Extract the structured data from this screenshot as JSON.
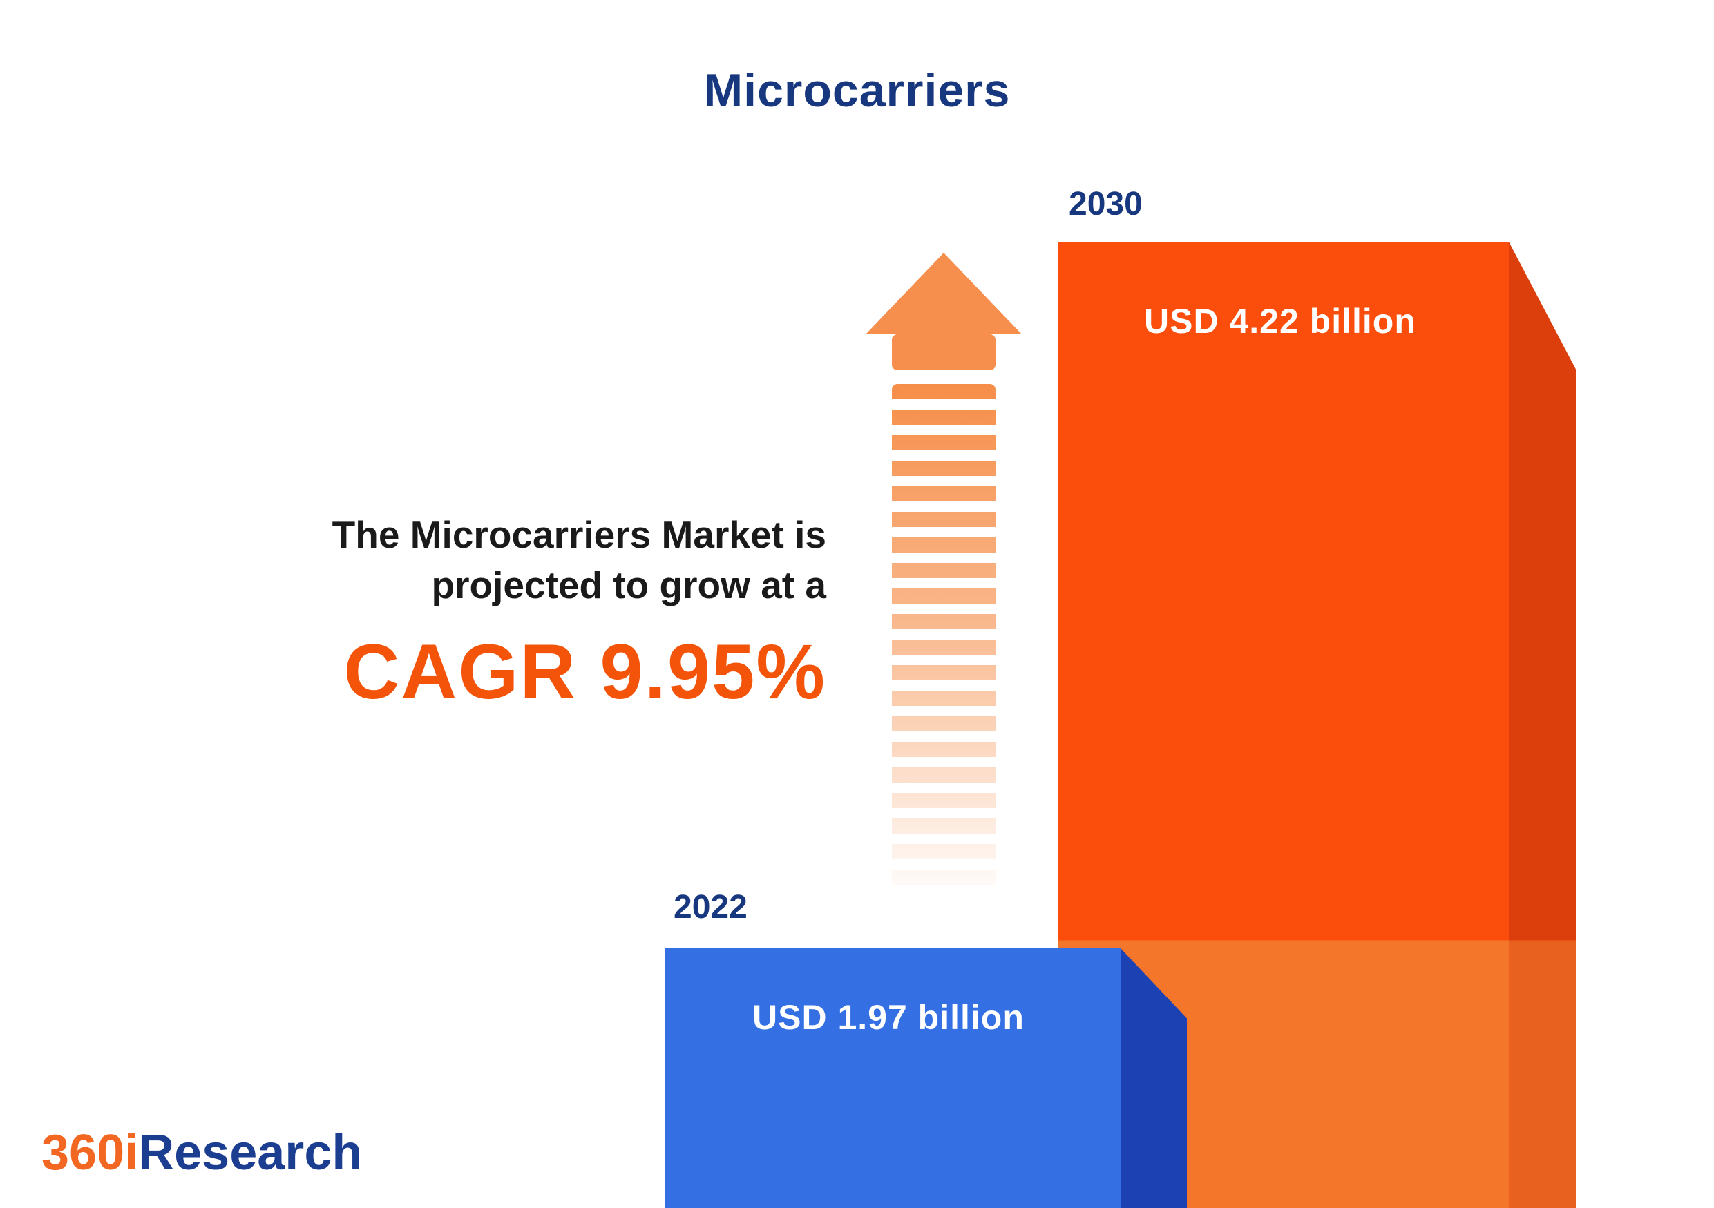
{
  "title": "Microcarriers",
  "description": {
    "line1": "The Microcarriers Market is",
    "line2": "projected to grow at a",
    "cagr": "CAGR 9.95%"
  },
  "bars": {
    "y2022": {
      "year": "2022",
      "value_label": "USD 1.97 billion"
    },
    "y2030": {
      "year": "2030",
      "value_label": "USD 4.22 billion"
    }
  },
  "logo": {
    "part1": "360i",
    "part2": "Research"
  },
  "chart_data": {
    "type": "bar",
    "title": "Microcarriers",
    "categories": [
      "2022",
      "2030"
    ],
    "series": [
      {
        "name": "Market size (USD billion)",
        "values": [
          1.97,
          4.22
        ]
      }
    ],
    "value_labels": [
      "USD 1.97 billion",
      "USD 4.22 billion"
    ],
    "cagr_percent": 9.95,
    "annotations": [
      "The Microcarriers Market is projected to grow at a CAGR 9.95%"
    ],
    "legend": false,
    "grid": false,
    "xlabel": "",
    "ylabel": "",
    "colors": {
      "bar_2022_front": "#3470E4",
      "bar_2022_side": "#1C41B3",
      "bar_2030_front": "#FB4D0B",
      "bar_2030_front_lower": "#F3762B",
      "bar_2030_side": "#DC3E0C",
      "bar_2030_side_lower": "#E8611F",
      "arrow": "#F68F4E",
      "accent_text": "#F4540A",
      "navy_text": "#17377E",
      "logo_orange": "#F26822",
      "logo_navy": "#1B3E91"
    }
  }
}
